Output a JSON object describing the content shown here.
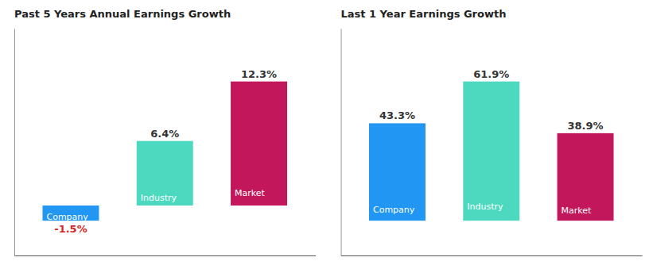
{
  "chart_data": [
    {
      "type": "bar",
      "title": "Past 5 Years Annual Earnings Growth",
      "categories": [
        "Company",
        "Industry",
        "Market"
      ],
      "values": [
        -1.5,
        6.4,
        12.3
      ],
      "value_labels": [
        "-1.5%",
        "6.4%",
        "12.3%"
      ],
      "colors": [
        "#2196f3",
        "#4dd9c0",
        "#c2185b"
      ],
      "ylim": [
        -4.95,
        17.544
      ],
      "yticks": [],
      "grid": false,
      "data_labels": true,
      "tick_labels": false
    },
    {
      "type": "bar",
      "title": "Last 1 Year Earnings Growth",
      "categories": [
        "Company",
        "Industry",
        "Market"
      ],
      "values": [
        43.3,
        61.9,
        38.9
      ],
      "value_labels": [
        "43.3%",
        "61.9%",
        "38.9%"
      ],
      "colors": [
        "#2196f3",
        "#4dd9c0",
        "#c2185b"
      ],
      "ylim": [
        -15.475,
        85.422
      ],
      "yticks": [],
      "grid": false,
      "data_labels": true,
      "tick_labels": false
    }
  ]
}
